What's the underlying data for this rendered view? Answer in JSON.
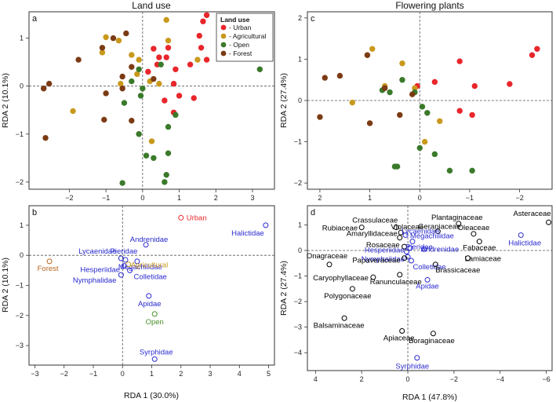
{
  "chart_data": [
    {
      "type": "scatter",
      "panel_label": "a",
      "title": "Land use",
      "xlabel": "",
      "ylabel": "RDA 2 (10.1%)",
      "xlim": [
        -3.1,
        3.6
      ],
      "ylim": [
        -2.15,
        1.55
      ],
      "xticks": [
        -2,
        -1,
        0,
        1,
        2,
        3
      ],
      "yticks": [
        -2,
        -1,
        0,
        1
      ],
      "grid": false,
      "reference_lines": [
        "x=0",
        "y=0"
      ],
      "legend": {
        "title": "Land use",
        "position": "top-right",
        "entries": [
          {
            "label": "- Urban",
            "color": "#e8262b"
          },
          {
            "label": "- Agricultural",
            "color": "#c9991d"
          },
          {
            "label": "- Open",
            "color": "#3a7a2a"
          },
          {
            "label": "- Forest",
            "color": "#7b3b14"
          }
        ]
      },
      "series": [
        {
          "name": "Urban",
          "color": "#e8262b",
          "points": [
            [
              1.75,
              1.48
            ],
            [
              1.65,
              1.35
            ],
            [
              1.55,
              1.05
            ],
            [
              0.3,
              0.78
            ],
            [
              0.45,
              0.6
            ],
            [
              0.4,
              0.45
            ],
            [
              1.3,
              0.45
            ],
            [
              1.75,
              0.55
            ],
            [
              0.7,
              0.8
            ],
            [
              0.65,
              0.6
            ],
            [
              0.9,
              0.35
            ],
            [
              0.85,
              0.05
            ],
            [
              1.0,
              -0.2
            ],
            [
              1.4,
              -0.25
            ],
            [
              0.6,
              -0.3
            ],
            [
              0.85,
              -0.55
            ],
            [
              1.6,
              0.8
            ],
            [
              0.15,
              0.3
            ]
          ]
        },
        {
          "name": "Agricultural",
          "color": "#c9991d",
          "points": [
            [
              -1.0,
              1.02
            ],
            [
              -0.65,
              0.95
            ],
            [
              -1.1,
              0.7
            ],
            [
              0.65,
              1.38
            ],
            [
              -1.9,
              -0.52
            ],
            [
              -0.1,
              0.55
            ],
            [
              -0.15,
              0.25
            ],
            [
              0.25,
              -1.15
            ],
            [
              1.5,
              0.55
            ],
            [
              0.45,
              0.05
            ],
            [
              -0.6,
              0.05
            ],
            [
              0.2,
              0.1
            ],
            [
              0.7,
              0.95
            ],
            [
              -0.3,
              0.65
            ]
          ]
        },
        {
          "name": "Open",
          "color": "#3a7a2a",
          "points": [
            [
              3.2,
              0.35
            ],
            [
              0.5,
              0.45
            ],
            [
              -0.1,
              0.35
            ],
            [
              0.0,
              -0.05
            ],
            [
              -0.05,
              -0.2
            ],
            [
              -0.5,
              -0.35
            ],
            [
              0.9,
              -0.6
            ],
            [
              0.7,
              -0.85
            ],
            [
              -0.1,
              -1.0
            ],
            [
              0.1,
              -1.45
            ],
            [
              0.3,
              -1.5
            ],
            [
              0.7,
              -1.4
            ],
            [
              0.65,
              -1.85
            ],
            [
              0.6,
              -2.0
            ],
            [
              -0.55,
              -2.02
            ],
            [
              -0.3,
              0.1
            ]
          ]
        },
        {
          "name": "Forest",
          "color": "#7b3b14",
          "points": [
            [
              -2.7,
              -0.05
            ],
            [
              -2.55,
              0.05
            ],
            [
              -2.65,
              -1.08
            ],
            [
              -1.75,
              0.55
            ],
            [
              -1.1,
              0.8
            ],
            [
              -0.8,
              1.0
            ],
            [
              -0.45,
              1.1
            ],
            [
              -0.3,
              0.4
            ],
            [
              -0.55,
              -0.05
            ],
            [
              -1.0,
              -0.15
            ],
            [
              -1.05,
              -0.7
            ],
            [
              -0.3,
              -0.72
            ],
            [
              -0.55,
              0.2
            ],
            [
              0.3,
              0.15
            ]
          ]
        }
      ]
    },
    {
      "type": "scatter",
      "panel_label": "b",
      "title": "",
      "xlabel": "RDA 1 (30.0%)",
      "ylabel": "RDA 2 (10.1%)",
      "xlim": [
        -3.2,
        5.2
      ],
      "ylim": [
        -3.65,
        1.65
      ],
      "xticks": [
        -3,
        -2,
        -1,
        0,
        1,
        2,
        3,
        4,
        5
      ],
      "yticks": [
        -3,
        -2,
        -1,
        0,
        1
      ],
      "grid": false,
      "reference_lines": [
        "x=0",
        "y=0"
      ],
      "points": [
        {
          "label": "Urban",
          "x": 2.0,
          "y": 1.25,
          "color": "#e8262b"
        },
        {
          "label": "Halictidae",
          "x": 4.9,
          "y": 1.0,
          "color": "#2a2ad0"
        },
        {
          "label": "Andrenidae",
          "x": 0.8,
          "y": 0.35,
          "color": "#2a2ad0"
        },
        {
          "label": "Pieridae",
          "x": 0.1,
          "y": -0.15,
          "color": "#2a2ad0"
        },
        {
          "label": "Lycaenidae",
          "x": -0.05,
          "y": -0.1,
          "color": "#2a2ad0"
        },
        {
          "label": "Megachilidae",
          "x": 0.5,
          "y": -0.2,
          "color": "#2a2ad0"
        },
        {
          "label": "Agricultural",
          "x": 0.2,
          "y": -0.3,
          "color": "#c9991d"
        },
        {
          "label": "Hesperiidae",
          "x": 0.05,
          "y": -0.35,
          "color": "#2a2ad0"
        },
        {
          "label": "Colletidae",
          "x": 0.25,
          "y": -0.5,
          "color": "#2a2ad0"
        },
        {
          "label": "Nymphalidae",
          "x": -0.05,
          "y": -0.65,
          "color": "#2a2ad0"
        },
        {
          "label": "Forest",
          "x": -2.5,
          "y": -0.2,
          "color": "#b8651f"
        },
        {
          "label": "Apidae",
          "x": 0.9,
          "y": -1.35,
          "color": "#2a2ad0"
        },
        {
          "label": "Open",
          "x": 1.1,
          "y": -1.95,
          "color": "#4a8f2a"
        },
        {
          "label": "Syrphidae",
          "x": 1.1,
          "y": -3.45,
          "color": "#2a2ad0"
        }
      ]
    },
    {
      "type": "scatter",
      "panel_label": "c",
      "title": "Flowering plants",
      "xlabel": "",
      "ylabel": "RDA 2 (27.4%)",
      "xlim": [
        2.25,
        -2.65
      ],
      "ylim": [
        -2.15,
        2.15
      ],
      "xticks": [
        2,
        1,
        0,
        -1,
        -2
      ],
      "yticks": [
        -2,
        -1,
        0,
        1,
        2
      ],
      "grid": false,
      "reference_lines": [
        "x=0",
        "y=0"
      ],
      "series": [
        {
          "name": "Urban",
          "color": "#e8262b",
          "points": [
            [
              -2.35,
              1.25
            ],
            [
              -2.25,
              1.1
            ],
            [
              -1.8,
              0.4
            ],
            [
              -1.1,
              0.35
            ],
            [
              -0.3,
              0.45
            ],
            [
              -0.8,
              -0.25
            ],
            [
              -1.05,
              -0.35
            ],
            [
              0.05,
              0.35
            ],
            [
              -0.8,
              0.95
            ]
          ]
        },
        {
          "name": "Agricultural",
          "color": "#c9991d",
          "points": [
            [
              0.95,
              1.25
            ],
            [
              0.7,
              0.35
            ],
            [
              1.35,
              -0.05
            ],
            [
              0.35,
              0.9
            ],
            [
              0.1,
              0.3
            ],
            [
              -0.4,
              -0.5
            ],
            [
              -0.1,
              -1.0
            ],
            [
              1.05,
              1.1
            ]
          ]
        },
        {
          "name": "Open",
          "color": "#3a7a2a",
          "points": [
            [
              0.75,
              0.25
            ],
            [
              0.35,
              0.5
            ],
            [
              0.6,
              0.2
            ],
            [
              0.1,
              0.2
            ],
            [
              -0.05,
              -0.15
            ],
            [
              -0.15,
              -0.3
            ],
            [
              0.0,
              -1.15
            ],
            [
              -0.3,
              -1.3
            ],
            [
              0.5,
              -1.6
            ],
            [
              -1.05,
              -1.7
            ],
            [
              -0.6,
              -1.7
            ],
            [
              0.45,
              -1.6
            ]
          ]
        },
        {
          "name": "Forest",
          "color": "#7b3b14",
          "points": [
            [
              2.0,
              -0.4
            ],
            [
              1.9,
              0.55
            ],
            [
              1.6,
              0.6
            ],
            [
              1.05,
              1.1
            ],
            [
              0.7,
              0.3
            ],
            [
              1.0,
              -0.55
            ],
            [
              0.15,
              0.15
            ],
            [
              0.4,
              -0.35
            ]
          ]
        }
      ]
    },
    {
      "type": "scatter",
      "panel_label": "d",
      "title": "",
      "xlabel": "RDA 1 (47.8%)",
      "ylabel": "RDA 2 (27.4%)",
      "xlim": [
        4.35,
        -6.25
      ],
      "ylim": [
        -4.7,
        1.75
      ],
      "xticks": [
        4,
        2,
        0,
        -2,
        -4,
        -6
      ],
      "yticks": [
        -4,
        -3,
        -2,
        -1,
        0,
        1
      ],
      "grid": false,
      "reference_lines": [
        "x=0",
        "y=0"
      ],
      "points": [
        {
          "label": "Crassulaceae",
          "x": 0.5,
          "y": 0.9,
          "color": "#000000"
        },
        {
          "label": "Violaceae",
          "x": 0.3,
          "y": 0.7,
          "color": "#000000"
        },
        {
          "label": "Rubiaceae",
          "x": 2.0,
          "y": 0.9,
          "color": "#000000"
        },
        {
          "label": "Plantaginaceae",
          "x": -2.2,
          "y": 1.05,
          "color": "#000000"
        },
        {
          "label": "Asteraceae",
          "x": -6.1,
          "y": 1.1,
          "color": "#000000"
        },
        {
          "label": "Geraniaceae",
          "x": -1.3,
          "y": 0.75,
          "color": "#000000"
        },
        {
          "label": "Oleaceae",
          "x": -2.85,
          "y": 0.65,
          "color": "#000000"
        },
        {
          "label": "Lycaenidae",
          "x": 0.1,
          "y": 0.6,
          "color": "#2a2ad0"
        },
        {
          "label": "Amaryllidaceae",
          "x": 0.35,
          "y": 0.5,
          "color": "#000000"
        },
        {
          "label": "Megachilidae",
          "x": -0.2,
          "y": 0.35,
          "color": "#2a2ad0"
        },
        {
          "label": "Fabaceae",
          "x": -3.1,
          "y": 0.35,
          "color": "#000000"
        },
        {
          "label": "Halictidae",
          "x": -4.9,
          "y": 0.6,
          "color": "#2a2ad0"
        },
        {
          "label": "Rosaceae",
          "x": 0.15,
          "y": 0.15,
          "color": "#000000"
        },
        {
          "label": "Pieridae",
          "x": -0.1,
          "y": 0.1,
          "color": "#2a2ad0"
        },
        {
          "label": "Andrenidae",
          "x": -0.7,
          "y": 0.05,
          "color": "#2a2ad0"
        },
        {
          "label": "Hesperiidae",
          "x": 0.05,
          "y": -0.05,
          "color": "#2a2ad0"
        },
        {
          "label": "Lamiaceae",
          "x": -2.6,
          "y": -0.3,
          "color": "#000000"
        },
        {
          "label": "Nymphalidae",
          "x": 0.0,
          "y": -0.25,
          "color": "#2a2ad0"
        },
        {
          "label": "Papaveraceae",
          "x": 0.15,
          "y": -0.3,
          "color": "#000000"
        },
        {
          "label": "Onagraceae",
          "x": 3.4,
          "y": -0.55,
          "color": "#000000"
        },
        {
          "label": "Colletidae",
          "x": -0.15,
          "y": -0.4,
          "color": "#2a2ad0"
        },
        {
          "label": "Brassicaceae",
          "x": -1.2,
          "y": -0.55,
          "color": "#000000"
        },
        {
          "label": "Caryophyllaceae",
          "x": 1.5,
          "y": -1.05,
          "color": "#000000"
        },
        {
          "label": "Ranunculaceae",
          "x": 0.35,
          "y": -0.95,
          "color": "#000000"
        },
        {
          "label": "Apidae",
          "x": -0.85,
          "y": -1.15,
          "color": "#2a2ad0"
        },
        {
          "label": "Polygonaceae",
          "x": 2.4,
          "y": -1.5,
          "color": "#000000"
        },
        {
          "label": "Balsaminaceae",
          "x": 2.75,
          "y": -2.65,
          "color": "#000000"
        },
        {
          "label": "Apiaceae",
          "x": 0.25,
          "y": -3.15,
          "color": "#000000"
        },
        {
          "label": "Boraginaceae",
          "x": -1.1,
          "y": -3.25,
          "color": "#000000"
        },
        {
          "label": "Syrphidae",
          "x": -0.4,
          "y": -4.2,
          "color": "#2a2ad0"
        }
      ]
    }
  ]
}
